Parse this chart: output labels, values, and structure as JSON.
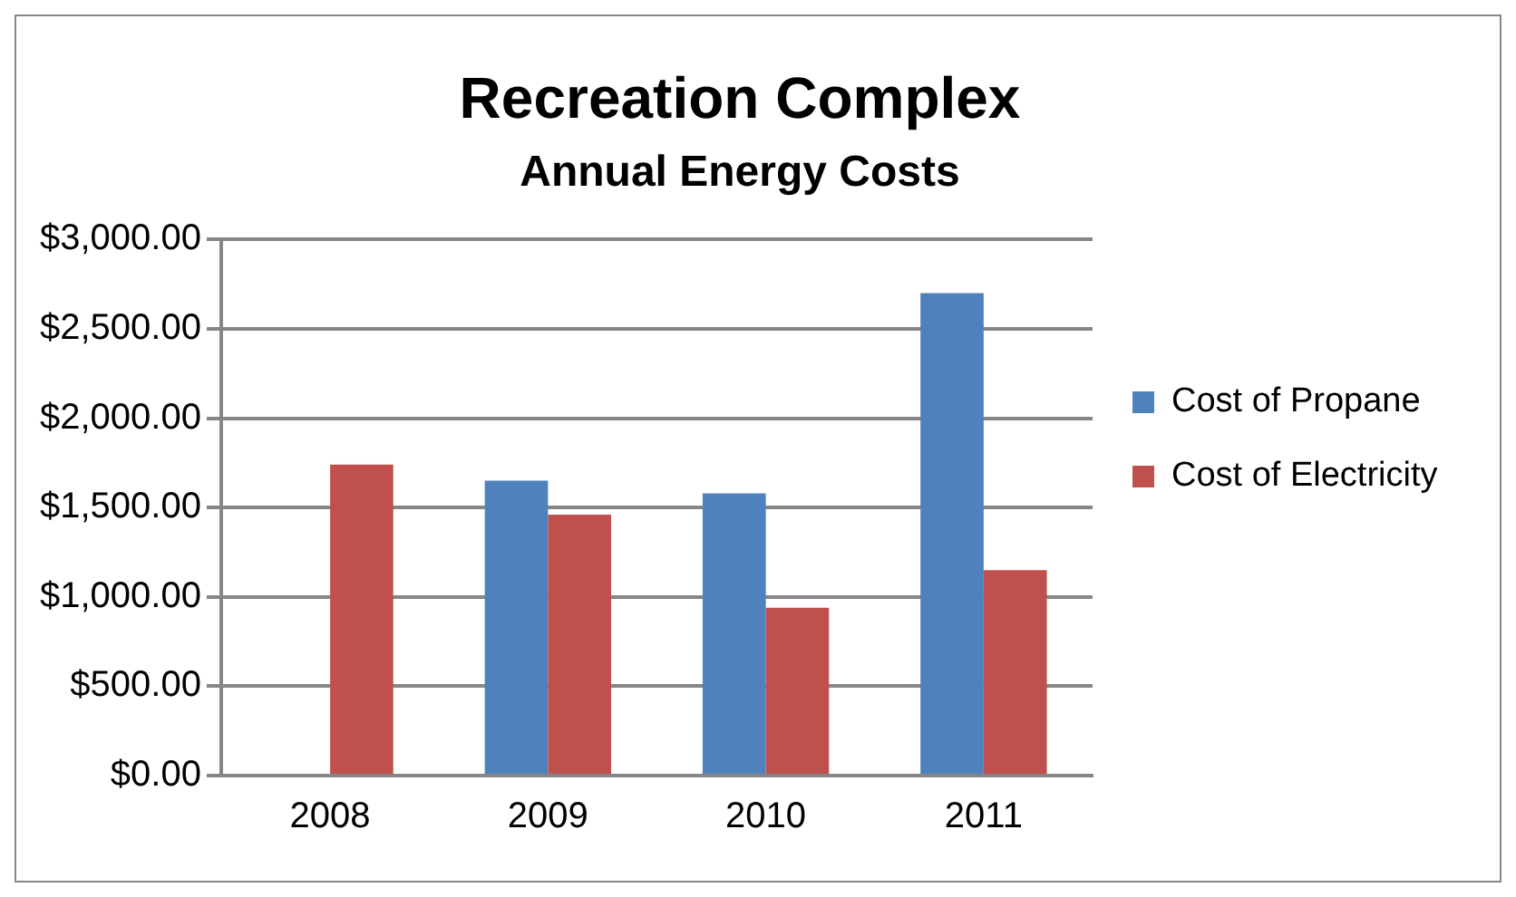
{
  "chart_data": {
    "type": "bar",
    "title": "Recreation Complex",
    "subtitle": "Annual Energy Costs",
    "categories": [
      "2008",
      "2009",
      "2010",
      "2011"
    ],
    "series": [
      {
        "name": "Cost of Propane",
        "color": "#4f81bd",
        "values": [
          null,
          1650,
          1580,
          2700
        ]
      },
      {
        "name": "Cost of Electricity",
        "color": "#c0504d",
        "values": [
          1740,
          1460,
          940,
          1150
        ]
      }
    ],
    "ylim": [
      0,
      3000
    ],
    "yticks": [
      {
        "value": 0,
        "label": "$0.00"
      },
      {
        "value": 500,
        "label": "$500.00"
      },
      {
        "value": 1000,
        "label": "$1,000.00"
      },
      {
        "value": 1500,
        "label": "$1,500.00"
      },
      {
        "value": 2000,
        "label": "$2,000.00"
      },
      {
        "value": 2500,
        "label": "$2,500.00"
      },
      {
        "value": 3000,
        "label": "$3,000.00"
      }
    ],
    "grid": "y",
    "legend": "right"
  }
}
